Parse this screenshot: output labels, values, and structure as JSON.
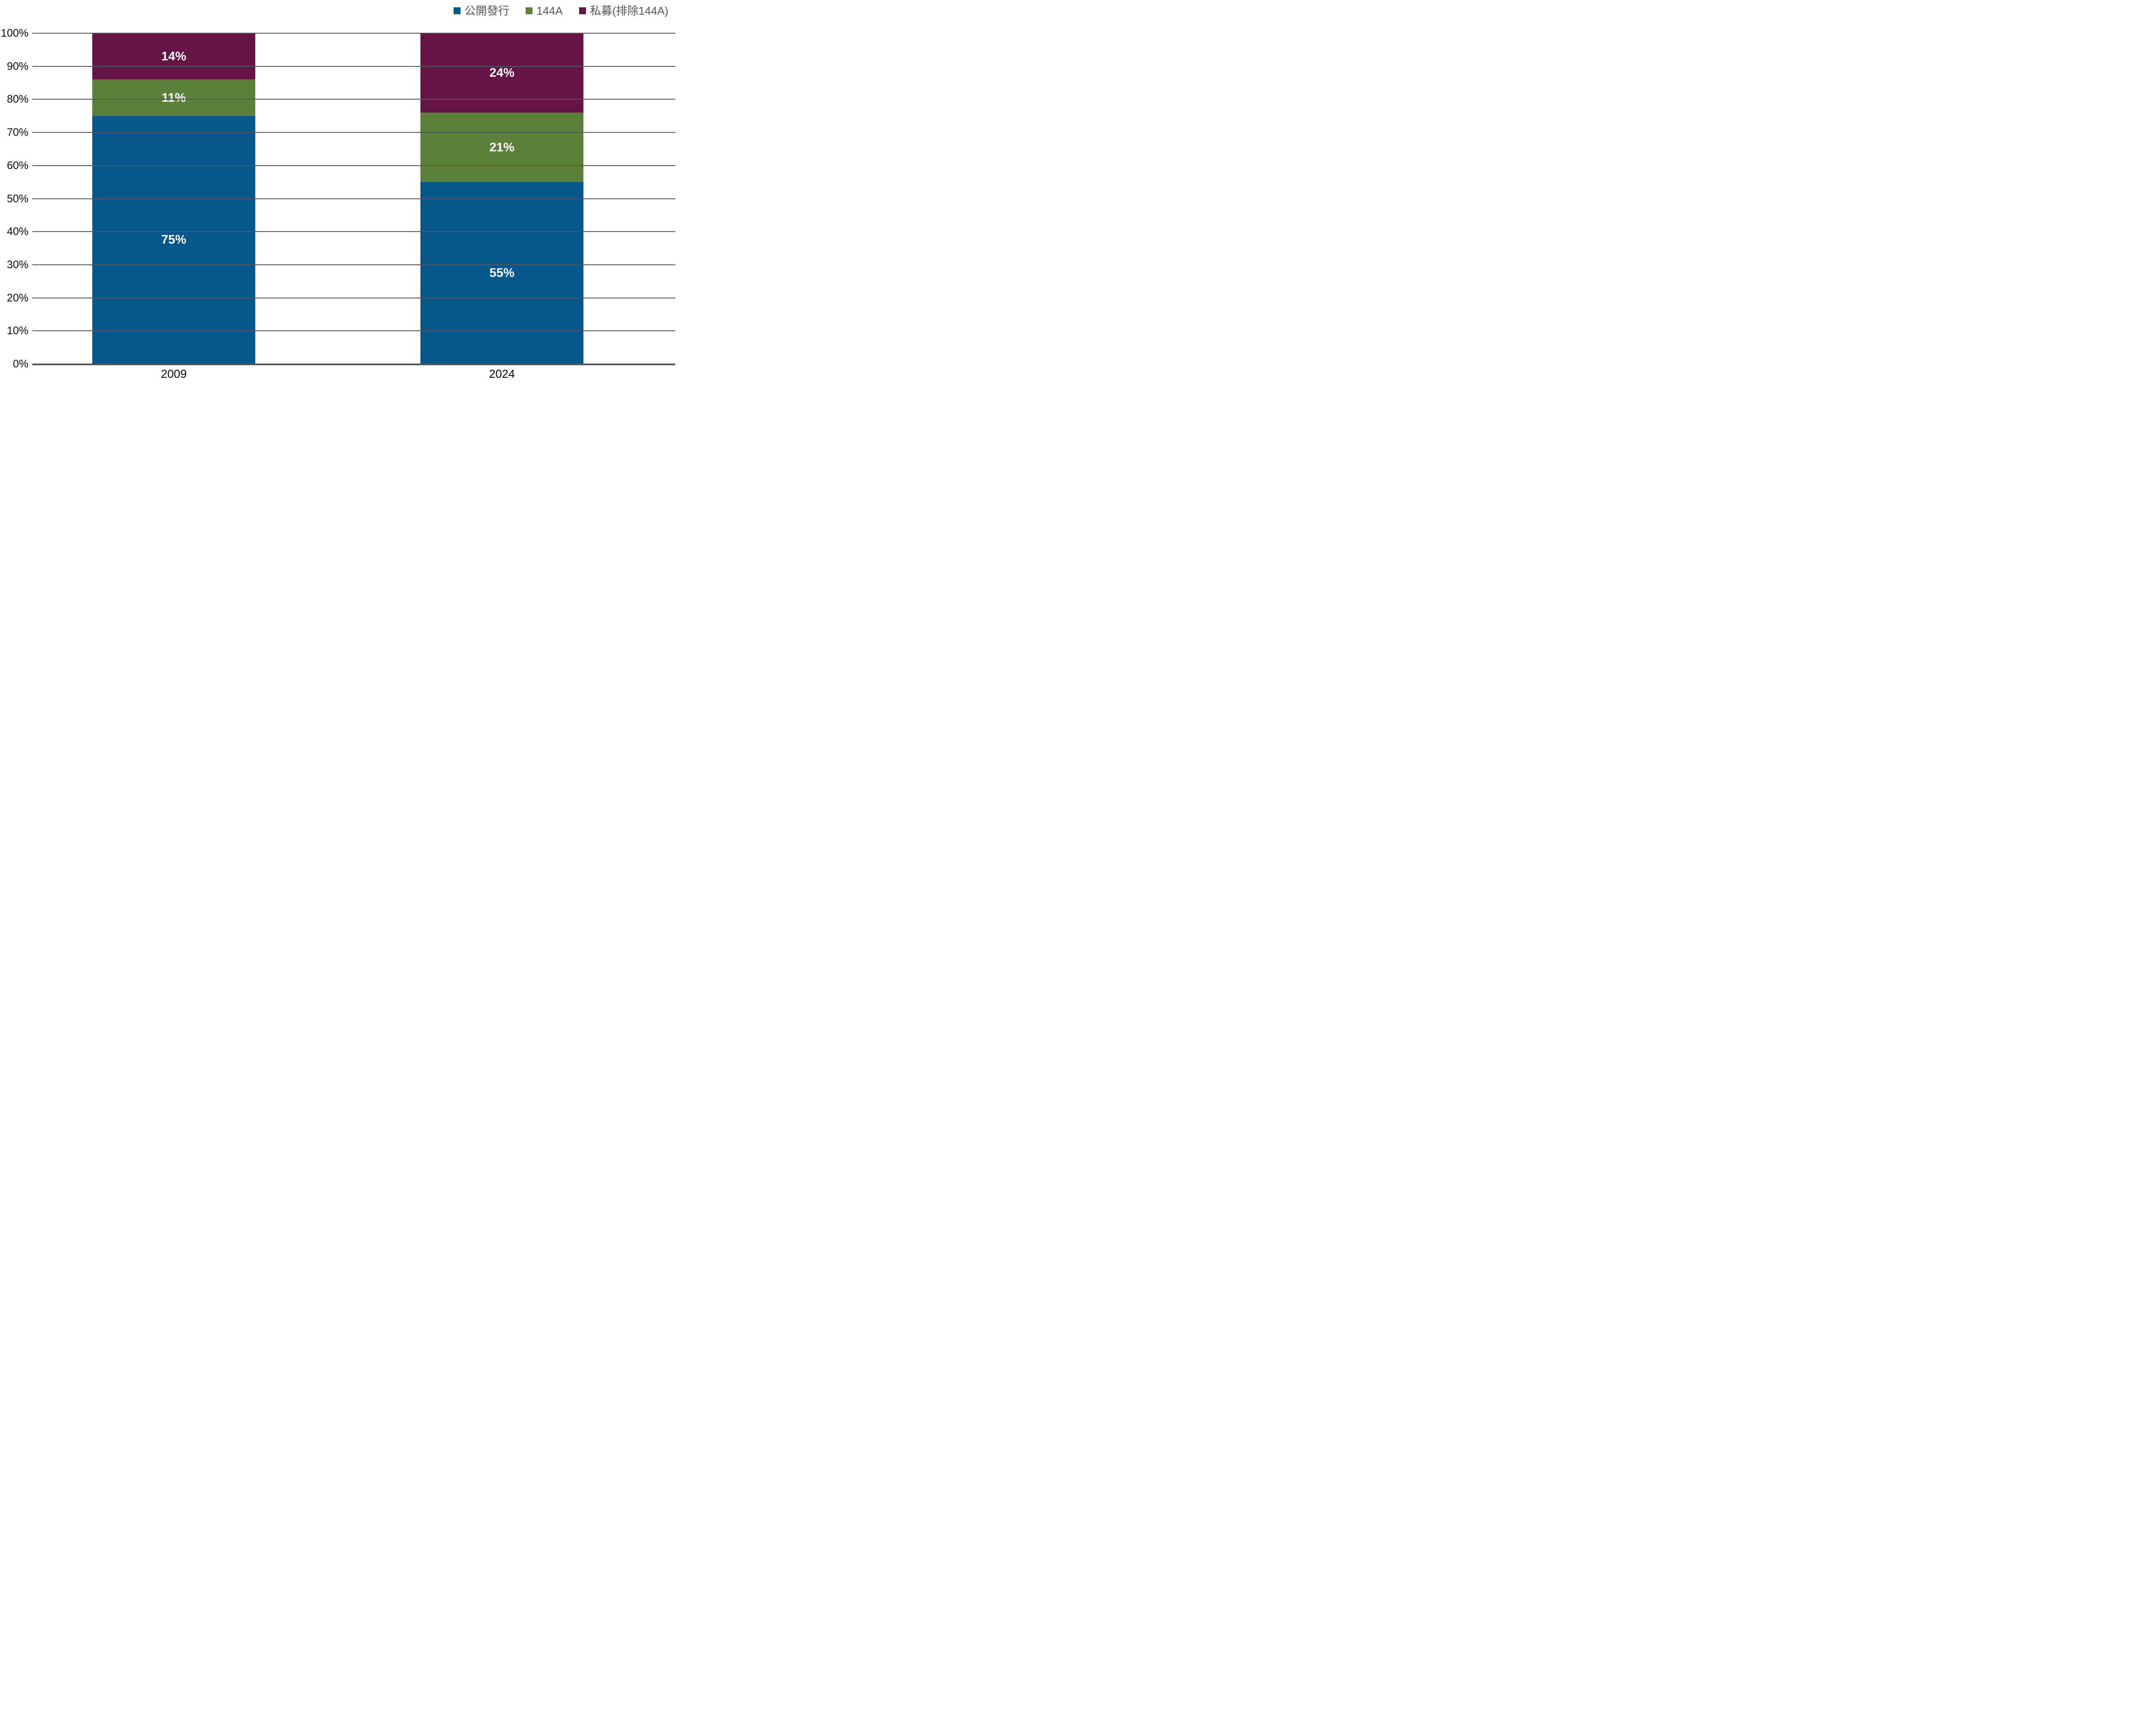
{
  "chart_data": {
    "type": "bar",
    "stacked": true,
    "percent_stacked": true,
    "title": "",
    "xlabel": "",
    "ylabel": "",
    "ylim": [
      0,
      100
    ],
    "grid": true,
    "legend_position": "top-right",
    "value_suffix": "%",
    "categories": [
      "2009",
      "2024"
    ],
    "series": [
      {
        "name": "公開發行",
        "color": "#04568B",
        "values": [
          75,
          55
        ],
        "data_labels": [
          "75%",
          "55%"
        ]
      },
      {
        "name": "144A",
        "color": "#5D8139",
        "values": [
          11,
          21
        ],
        "data_labels": [
          "11%",
          "21%"
        ]
      },
      {
        "name": "私募(排除144A)",
        "color": "#641345",
        "values": [
          14,
          24
        ],
        "data_labels": [
          "14%",
          "24%"
        ]
      }
    ],
    "y_ticks": [
      {
        "pct": 0,
        "label": "0%"
      },
      {
        "pct": 10,
        "label": "10%"
      },
      {
        "pct": 20,
        "label": "20%"
      },
      {
        "pct": 30,
        "label": "30%"
      },
      {
        "pct": 40,
        "label": "40%"
      },
      {
        "pct": 50,
        "label": "50%"
      },
      {
        "pct": 60,
        "label": "60%"
      },
      {
        "pct": 70,
        "label": "70%"
      },
      {
        "pct": 80,
        "label": "80%"
      },
      {
        "pct": 90,
        "label": "90%"
      },
      {
        "pct": 100,
        "label": "100%"
      }
    ]
  },
  "colors": {
    "background": "#FFFFFF",
    "gridline": "#54575C",
    "axis_line": "#54575C",
    "tick_text": "#0D0D0D",
    "legend_text": "#54575A",
    "bar_label_text": "#FFFFFF"
  }
}
